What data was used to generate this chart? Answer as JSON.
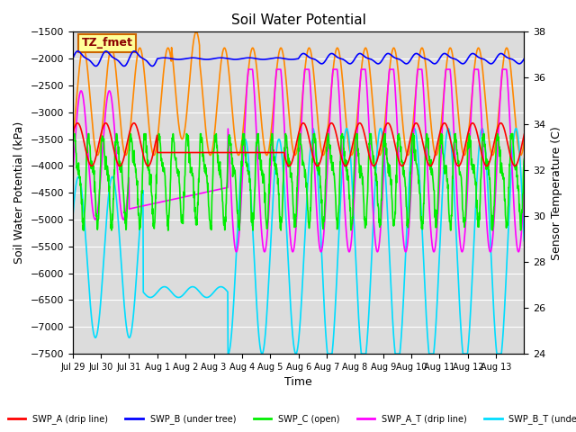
{
  "title": "Soil Water Potential",
  "ylabel_left": "Soil Water Potential (kPa)",
  "ylabel_right": "Sensor Temperature (C)",
  "xlabel": "Time",
  "ylim_left": [
    -7500,
    -1500
  ],
  "ylim_right": [
    24,
    38
  ],
  "yticks_left": [
    -7500,
    -7000,
    -6500,
    -6000,
    -5500,
    -5000,
    -4500,
    -4000,
    -3500,
    -3000,
    -2500,
    -2000,
    -1500
  ],
  "yticks_right": [
    24,
    26,
    28,
    30,
    32,
    34,
    36,
    38
  ],
  "bg_color": "#dcdcdc",
  "annotation_label": "TZ_fmet",
  "annotation_box_color": "#ffff99",
  "annotation_box_edge": "#cc6600",
  "xtick_labels": [
    "Jul 29",
    "Jul 30",
    "Jul 31",
    "Aug 1",
    "Aug 2",
    "Aug 3",
    "Aug 4",
    "Aug 5",
    "Aug 6",
    "Aug 7",
    "Aug 8",
    "Aug 9",
    "Aug 10",
    "Aug 11",
    "Aug 12",
    "Aug 13"
  ],
  "line_colors": {
    "SWP_A": "#ff0000",
    "SWP_B": "#0000ff",
    "SWP_C": "#00ee00",
    "SWP_A_T": "#ff00ff",
    "SWP_B_T": "#00ddff",
    "SWP_C_T": "#ff8800"
  }
}
